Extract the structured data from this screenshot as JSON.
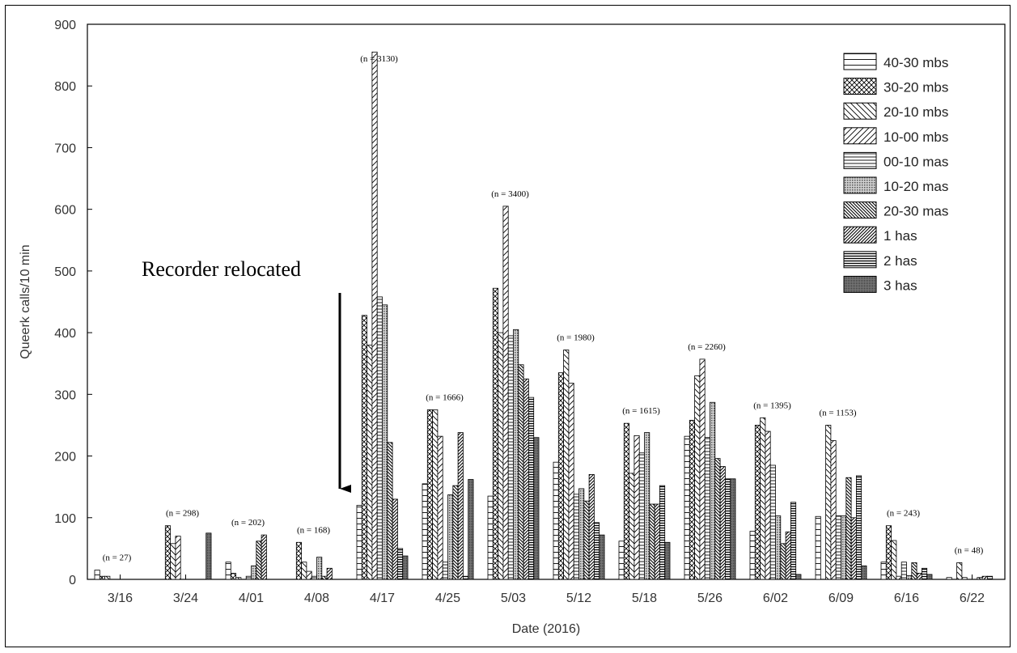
{
  "chart_data": {
    "type": "bar",
    "title": "",
    "xlabel": "Date (2016)",
    "ylabel": "Queerk calls/10 min",
    "ylim": [
      0,
      900
    ],
    "yticks": [
      0,
      100,
      200,
      300,
      400,
      500,
      600,
      700,
      800,
      900
    ],
    "legend_position": "top-right",
    "categories": [
      "3/16",
      "3/24",
      "4/01",
      "4/08",
      "4/17",
      "4/25",
      "5/03",
      "5/12",
      "5/18",
      "5/26",
      "6/02",
      "6/09",
      "6/16",
      "6/22"
    ],
    "n_labels": [
      "(n = 27)",
      "(n = 298)",
      "(n = 202)",
      "(n = 168)",
      "(n = 3130)",
      "(n = 1666)",
      "(n = 3400)",
      "(n = 1980)",
      "(n = 1615)",
      "(n = 2260)",
      "(n = 1395)",
      "(n = 1153)",
      "(n = 243)",
      "(n = 48)"
    ],
    "annotation": "Recorder relocated",
    "series": [
      {
        "name": "40-30 mbs",
        "pattern": "hlines-wide",
        "values": [
          15,
          0,
          28,
          0,
          120,
          155,
          135,
          190,
          62,
          232,
          78,
          102,
          28,
          3
        ]
      },
      {
        "name": "30-20 mbs",
        "pattern": "crosshatch",
        "values": [
          5,
          87,
          10,
          60,
          428,
          275,
          472,
          335,
          253,
          258,
          250,
          0,
          87,
          0
        ]
      },
      {
        "name": "20-10 mbs",
        "pattern": "backslash",
        "values": [
          5,
          58,
          3,
          28,
          380,
          275,
          400,
          372,
          172,
          330,
          262,
          250,
          63,
          27
        ]
      },
      {
        "name": "10-00 mbs",
        "pattern": "slash-wide",
        "values": [
          0,
          70,
          0,
          13,
          855,
          232,
          605,
          318,
          233,
          357,
          240,
          225,
          5,
          3
        ]
      },
      {
        "name": "00-10 mas",
        "pattern": "hlines",
        "values": [
          0,
          0,
          5,
          5,
          458,
          28,
          395,
          138,
          205,
          230,
          185,
          103,
          28,
          0
        ]
      },
      {
        "name": "10-20 mas",
        "pattern": "dots",
        "values": [
          0,
          0,
          22,
          36,
          445,
          137,
          405,
          147,
          238,
          287,
          103,
          103,
          6,
          0
        ]
      },
      {
        "name": "20-30 mas",
        "pattern": "backslash-dense",
        "values": [
          0,
          0,
          62,
          5,
          222,
          152,
          348,
          127,
          122,
          196,
          58,
          165,
          27,
          3
        ]
      },
      {
        "name": "1 has",
        "pattern": "slash-dense",
        "values": [
          0,
          0,
          72,
          18,
          130,
          238,
          325,
          170,
          122,
          183,
          77,
          100,
          10,
          5
        ]
      },
      {
        "name": "2 has",
        "pattern": "hlines-dense",
        "values": [
          0,
          0,
          0,
          0,
          50,
          5,
          295,
          92,
          152,
          163,
          125,
          168,
          18,
          5
        ]
      },
      {
        "name": "3 has",
        "pattern": "dense-dots",
        "values": [
          0,
          75,
          0,
          0,
          38,
          162,
          230,
          72,
          60,
          163,
          8,
          22,
          8,
          0
        ]
      }
    ]
  }
}
